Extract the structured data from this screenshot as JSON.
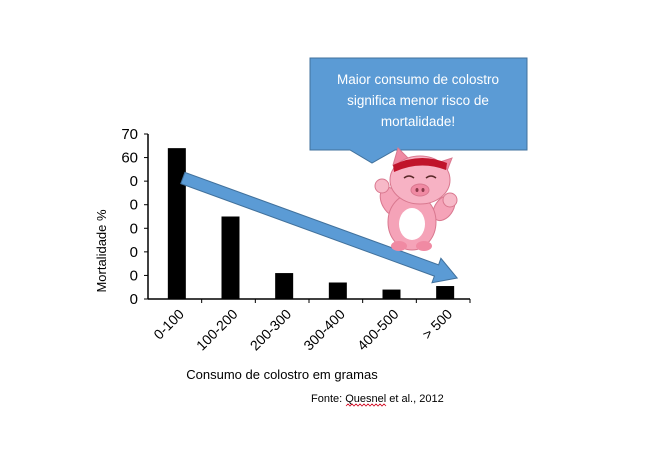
{
  "chart_data": {
    "type": "bar",
    "categories": [
      "0-100",
      "100-200",
      "200-300",
      "300-400",
      "400-500",
      "> 500"
    ],
    "values": [
      64,
      35,
      11,
      7,
      4,
      5.5
    ],
    "ylim": [
      0,
      70
    ],
    "yticks": [
      "0",
      "0",
      "0",
      "0",
      "0",
      "0",
      "60",
      "70"
    ],
    "ylabel": "Mortalidade %",
    "xlabel": "Consumo de colostro em gramas",
    "source": "Fonte: Quesnel et al., 2012",
    "bar_color": "#000000",
    "grid": false,
    "legend": "none",
    "callout": {
      "lines": [
        "Maior consumo de colostro",
        "significa menor risco de",
        "mortalidade!"
      ],
      "color": "#5b9bd5"
    },
    "trend_arrow": {
      "from_category": "0-100",
      "to_category": "> 500",
      "direction": "decreasing",
      "color": "#5b9bd5"
    }
  }
}
